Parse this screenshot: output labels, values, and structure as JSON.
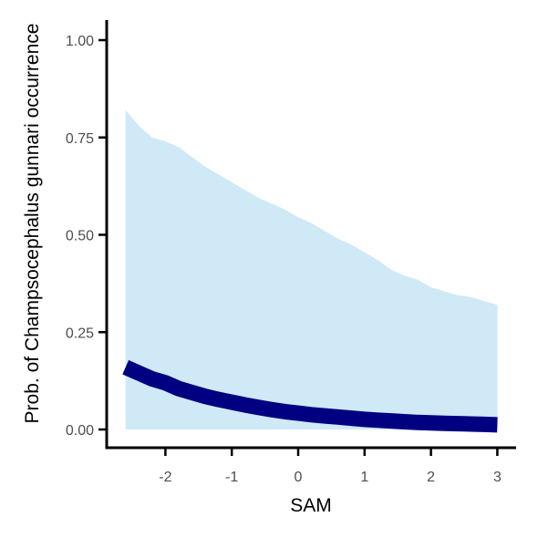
{
  "chart_data": {
    "type": "line",
    "xlabel": "SAM",
    "ylabel": "Prob. of  Champsocephalus gunnari  occurrence",
    "xlim": [
      -2.6,
      3.0
    ],
    "ylim": [
      0.0,
      1.0
    ],
    "x_ticks": [
      -2,
      -1,
      0,
      1,
      2,
      3
    ],
    "x_tick_labels": [
      "-2",
      "-1",
      "0",
      "1",
      "2",
      "3"
    ],
    "y_ticks": [
      0.0,
      0.25,
      0.5,
      0.75,
      1.0
    ],
    "y_tick_labels": [
      "0.00",
      "0.25",
      "0.50",
      "0.75",
      "1.00"
    ],
    "grid": false,
    "legend": "none",
    "colors": {
      "line": "#000080",
      "ribbon": "#cfe9f6",
      "axis": "#000000"
    },
    "series": [
      {
        "x": [
          -2.6,
          -2.4,
          -2.2,
          -2.0,
          -1.8,
          -1.6,
          -1.4,
          -1.2,
          -1.0,
          -0.8,
          -0.6,
          -0.4,
          -0.2,
          0.0,
          0.2,
          0.4,
          0.6,
          0.8,
          1.0,
          1.2,
          1.4,
          1.6,
          1.8,
          2.0,
          2.2,
          2.4,
          2.6,
          2.8,
          3.0
        ],
        "y": [
          0.16,
          0.145,
          0.13,
          0.12,
          0.105,
          0.095,
          0.085,
          0.077,
          0.07,
          0.063,
          0.057,
          0.051,
          0.046,
          0.042,
          0.038,
          0.035,
          0.032,
          0.029,
          0.026,
          0.024,
          0.022,
          0.02,
          0.018,
          0.017,
          0.016,
          0.015,
          0.014,
          0.013,
          0.012
        ],
        "lower": [
          0.0,
          0.0,
          0.0,
          0.0,
          0.0,
          0.0,
          0.0,
          0.0,
          0.0,
          0.0,
          0.0,
          0.0,
          0.0,
          0.0,
          0.0,
          0.0,
          0.0,
          0.0,
          0.0,
          0.0,
          0.0,
          0.0,
          0.0,
          0.0,
          0.0,
          0.0,
          0.0,
          0.0,
          0.0
        ],
        "upper": [
          0.82,
          0.78,
          0.75,
          0.74,
          0.725,
          0.7,
          0.675,
          0.655,
          0.635,
          0.615,
          0.595,
          0.58,
          0.565,
          0.545,
          0.53,
          0.51,
          0.49,
          0.475,
          0.455,
          0.435,
          0.41,
          0.395,
          0.385,
          0.365,
          0.355,
          0.345,
          0.34,
          0.33,
          0.32
        ]
      }
    ]
  }
}
